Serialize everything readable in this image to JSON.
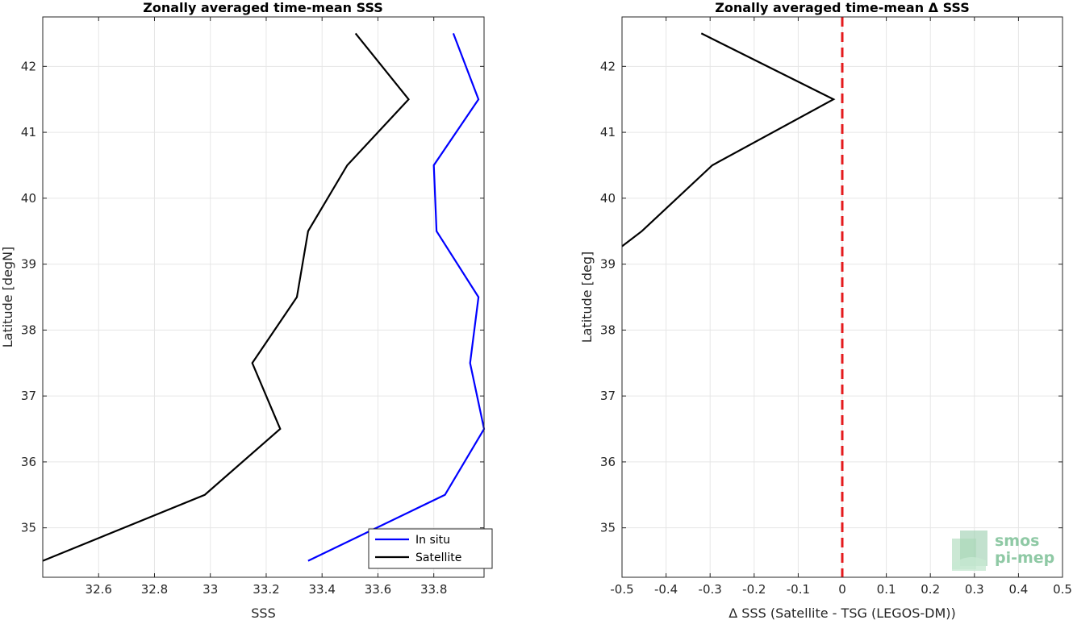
{
  "chart_data": [
    {
      "type": "line",
      "title": "Zonally averaged time-mean SSS",
      "xlabel": "SSS",
      "ylabel": "Latitude [degN]",
      "xlim": [
        32.4,
        33.98
      ],
      "ylim": [
        34.25,
        42.75
      ],
      "xticks": [
        32.6,
        32.8,
        33,
        33.2,
        33.4,
        33.6,
        33.8
      ],
      "xtick_labels": [
        "32.6",
        "32.8",
        "33",
        "33.2",
        "33.4",
        "33.6",
        "33.8"
      ],
      "yticks": [
        35,
        36,
        37,
        38,
        39,
        40,
        41,
        42
      ],
      "ytick_labels": [
        "35",
        "36",
        "37",
        "38",
        "39",
        "40",
        "41",
        "42"
      ],
      "grid": true,
      "legend": "bottom-right",
      "series": [
        {
          "name": "In situ",
          "color": "#0000ff",
          "x": [
            33.35,
            33.84,
            33.98,
            33.93,
            33.96,
            33.81,
            33.8,
            33.96,
            33.87
          ],
          "y": [
            34.5,
            35.5,
            36.5,
            37.5,
            38.5,
            39.5,
            40.5,
            41.5,
            42.5
          ]
        },
        {
          "name": "Satellite",
          "color": "#000000",
          "x": [
            32.4,
            32.98,
            33.25,
            33.15,
            33.31,
            33.35,
            33.49,
            33.71,
            33.52
          ],
          "y": [
            34.5,
            35.5,
            36.5,
            37.5,
            38.5,
            39.5,
            40.5,
            41.5,
            42.5
          ]
        }
      ]
    },
    {
      "type": "line",
      "title": "Zonally averaged time-mean Δ SSS",
      "xlabel": "Δ SSS (Satellite - TSG (LEGOS-DM))",
      "ylabel": "Latitude [deg]",
      "xlim": [
        -0.5,
        0.5
      ],
      "ylim": [
        34.25,
        42.75
      ],
      "xticks": [
        -0.5,
        -0.4,
        -0.3,
        -0.2,
        -0.1,
        0,
        0.1,
        0.2,
        0.3,
        0.4,
        0.5
      ],
      "xtick_labels": [
        "-0.5",
        "-0.4",
        "-0.3",
        "-0.2",
        "-0.1",
        "0",
        "0.1",
        "0.2",
        "0.3",
        "0.4",
        "0.5"
      ],
      "yticks": [
        35,
        36,
        37,
        38,
        39,
        40,
        41,
        42
      ],
      "ytick_labels": [
        "35",
        "36",
        "37",
        "38",
        "39",
        "40",
        "41",
        "42"
      ],
      "grid": true,
      "reference_line": {
        "x": 0,
        "color": "#e41a1c",
        "style": "dashed"
      },
      "series": [
        {
          "color": "#000000",
          "x": [
            -0.5,
            -0.455,
            -0.295,
            -0.02,
            -0.32
          ],
          "y": [
            39.27,
            39.5,
            40.5,
            41.5,
            42.5
          ]
        }
      ]
    }
  ],
  "logo": {
    "line1": "smos",
    "line2": "pi-mep",
    "color": "#8fc9a5"
  }
}
